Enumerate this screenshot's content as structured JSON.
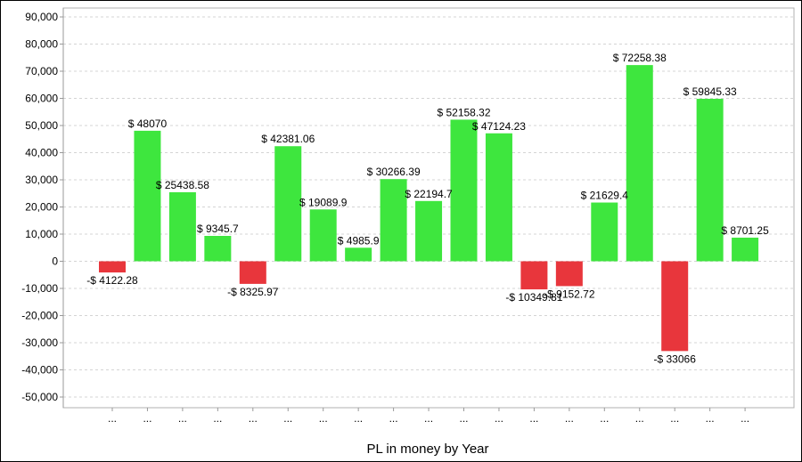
{
  "chart_data": {
    "type": "bar",
    "title": "",
    "xlabel": "PL in money by Year",
    "ylabel": "",
    "ylim": [
      -55000,
      90000
    ],
    "ytick_values": [
      90000,
      80000,
      70000,
      60000,
      50000,
      40000,
      30000,
      20000,
      10000,
      0,
      -10000,
      -20000,
      -30000,
      -40000,
      -50000
    ],
    "ytick_labels": [
      "90,000",
      "80,000",
      "70,000",
      "60,000",
      "50,000",
      "40,000",
      "30,000",
      "20,000",
      "10,000",
      "0",
      "-10,000",
      "-20,000",
      "-30,000",
      "-40,000",
      "-50,000"
    ],
    "grid": true,
    "categories": [
      "...",
      "...",
      "...",
      "...",
      "...",
      "...",
      "...",
      "...",
      "...",
      "...",
      "...",
      "...",
      "...",
      "...",
      "...",
      "...",
      "...",
      "...",
      "..."
    ],
    "values": [
      -4122.28,
      48070,
      25438.58,
      9345.7,
      -8325.97,
      42381.06,
      19089.9,
      4985.9,
      30266.39,
      22194.7,
      52158.32,
      47124.23,
      -10349.81,
      -9152.72,
      21629.4,
      72258.38,
      -33066,
      59845.33,
      8701.25
    ],
    "data_labels": [
      "-$ 4122.28",
      "$ 48070",
      "$ 25438.58",
      "$ 9345.7",
      "-$ 8325.97",
      "$ 42381.06",
      "$ 19089.9",
      "$ 4985.9",
      "$ 30266.39",
      "$ 22194.7",
      "$ 52158.32",
      "$ 47124.23",
      "-$ 10349.81",
      "-$ 9152.72",
      "$ 21629.4",
      "$ 72258.38",
      "-$ 33066",
      "$ 59845.33",
      "$ 8701.25"
    ],
    "colors": {
      "positive": "#3ee63e",
      "negative": "#e8363c",
      "grid": "#d4d4d4",
      "axis": "#999999"
    }
  }
}
